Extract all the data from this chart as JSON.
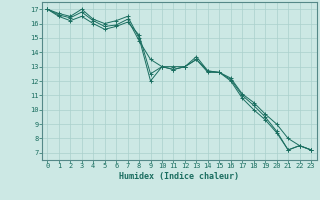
{
  "xlabel": "Humidex (Indice chaleur)",
  "ylabel": "",
  "xlim": [
    -0.5,
    23.5
  ],
  "ylim": [
    6.5,
    17.5
  ],
  "bg_color": "#cce8e4",
  "grid_color": "#aad0cc",
  "line_color": "#1a6e60",
  "xticks": [
    0,
    1,
    2,
    3,
    4,
    5,
    6,
    7,
    8,
    9,
    10,
    11,
    12,
    13,
    14,
    15,
    16,
    17,
    18,
    19,
    20,
    21,
    22,
    23
  ],
  "yticks": [
    7,
    8,
    9,
    10,
    11,
    12,
    13,
    14,
    15,
    16,
    17
  ],
  "series1_x": [
    0,
    1,
    2,
    3,
    4,
    5,
    6,
    7,
    8,
    9,
    10,
    11,
    12,
    13,
    14,
    15,
    16,
    17,
    18,
    19,
    20,
    21,
    22,
    23
  ],
  "series1_y": [
    17.0,
    16.7,
    16.5,
    17.0,
    16.3,
    16.0,
    16.2,
    16.5,
    15.0,
    12.0,
    13.0,
    13.0,
    13.0,
    13.5,
    12.7,
    12.6,
    12.1,
    11.0,
    10.3,
    9.5,
    8.5,
    7.2,
    7.5,
    7.2
  ],
  "series2_x": [
    0,
    1,
    2,
    3,
    4,
    5,
    6,
    7,
    8,
    9,
    10,
    11,
    12,
    13,
    14,
    15,
    16,
    17,
    18,
    19,
    20,
    21,
    22,
    23
  ],
  "series2_y": [
    17.0,
    16.6,
    16.4,
    16.8,
    16.2,
    15.8,
    15.9,
    16.3,
    14.8,
    13.5,
    13.0,
    12.8,
    13.0,
    13.5,
    12.6,
    12.6,
    12.0,
    10.8,
    10.0,
    9.3,
    8.4,
    7.2,
    7.5,
    7.2
  ],
  "series3_x": [
    0,
    1,
    2,
    3,
    4,
    5,
    6,
    7,
    8,
    9,
    10,
    11,
    12,
    13,
    14,
    15,
    16,
    17,
    18,
    19,
    20,
    21,
    22,
    23
  ],
  "series3_y": [
    17.0,
    16.5,
    16.2,
    16.5,
    16.0,
    15.6,
    15.8,
    16.1,
    15.2,
    12.5,
    13.0,
    12.8,
    13.0,
    13.7,
    12.7,
    12.6,
    12.2,
    11.1,
    10.5,
    9.7,
    9.0,
    8.0,
    7.5,
    7.2
  ],
  "xlabel_fontsize": 6.0,
  "tick_fontsize": 5.0
}
